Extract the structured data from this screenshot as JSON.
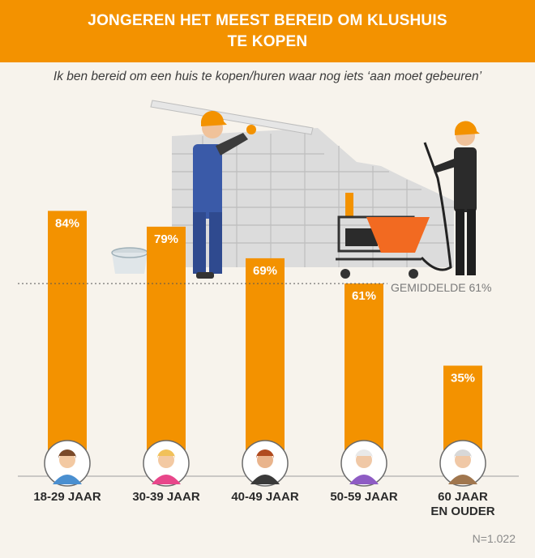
{
  "header": {
    "title_line1": "JONGEREN HET MEEST BEREID OM KLUSHUIS",
    "title_line2": "TE KOPEN",
    "subtitle": "Ik ben bereid om een huis te kopen/huren waar nog iets ‘aan moet gebeuren’"
  },
  "chart_data": {
    "type": "bar",
    "categories": [
      "18-29 JAAR",
      "30-39 JAAR",
      "40-49 JAAR",
      "50-59 JAAR",
      "60 JAAR EN OUDER"
    ],
    "category_lines": [
      [
        "18-29 JAAR"
      ],
      [
        "30-39 JAAR"
      ],
      [
        "40-49 JAAR"
      ],
      [
        "50-59 JAAR"
      ],
      [
        "60 JAAR",
        "EN OUDER"
      ]
    ],
    "values": [
      84,
      79,
      69,
      61,
      35
    ],
    "value_labels": [
      "84%",
      "79%",
      "69%",
      "61%",
      "35%"
    ],
    "ylim": [
      0,
      100
    ],
    "average": {
      "value": 61,
      "label": "GEMIDDELDE 61%"
    },
    "grid": false,
    "bar_color": "#f39200"
  },
  "footer": {
    "sample_size": "N=1.022"
  },
  "colors": {
    "accent": "#f39200",
    "background": "#f7f3ec"
  }
}
